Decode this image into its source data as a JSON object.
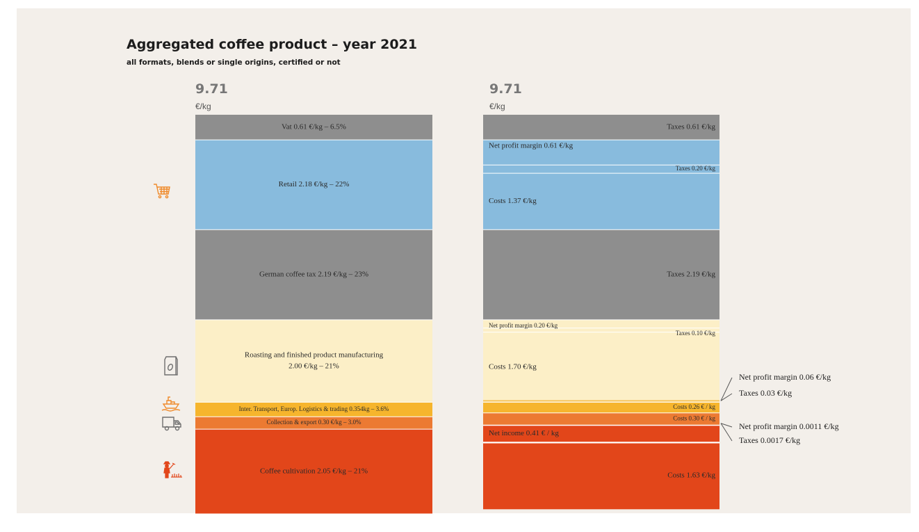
{
  "header": {
    "title": "Aggregated coffee product – year 2021",
    "subtitle": "all formats, blends or single origins, certified or not"
  },
  "left_bar": {
    "total": "9.71",
    "unit": "€/kg"
  },
  "right_bar": {
    "total": "9.71",
    "unit": "€/kg"
  },
  "icons": [
    "shopping-cart-icon",
    "coffee-bag-icon",
    "ship-icon",
    "truck-icon",
    "farmer-icon"
  ],
  "colors": {
    "tax": "#8e8e8e",
    "retail": "#88bbdd",
    "roasting": "#fcefc7",
    "transport": "#f6b52d",
    "export": "#ec7a32",
    "cultivation": "#e2461a",
    "icon": "#f08a2a",
    "background": "#f3efea"
  },
  "chart_data": [
    {
      "type": "bar",
      "stacked": true,
      "unit": "€/kg",
      "segments": [
        {
          "name": "Vat",
          "value": 0.61,
          "share": "6.5%",
          "label": "Vat 0.61 €/kg – 6.5%",
          "color_key": "tax"
        },
        {
          "name": "Retail",
          "value": 2.18,
          "share": "22%",
          "label": "Retail 2.18 €/kg – 22%",
          "color_key": "retail"
        },
        {
          "name": "German coffee tax",
          "value": 2.19,
          "share": "23%",
          "label": "German coffee tax 2.19 €/kg – 23%",
          "color_key": "tax"
        },
        {
          "name": "Roasting and finished product manufacturing",
          "value": 2.0,
          "share": "21%",
          "label": "Roasting and finished product manufacturing",
          "label2": "2.00 €/kg – 21%",
          "color_key": "roasting"
        },
        {
          "name": "Inter. Transport, Europ. Logistics & trading",
          "value": 0.354,
          "share": "3.6%",
          "label": "Inter. Transport, Europ. Logistics & trading 0.354kg – 3.6%",
          "color_key": "transport"
        },
        {
          "name": "Collection & export",
          "value": 0.3,
          "share": "3.0%",
          "label": "Collection & export 0.30 €/kg – 3.0%",
          "color_key": "export"
        },
        {
          "name": "Coffee cultivation",
          "value": 2.05,
          "share": "21%",
          "label": "Coffee cultivation 2.05 €/kg – 21%",
          "color_key": "cultivation"
        }
      ]
    },
    {
      "type": "bar",
      "stacked": true,
      "unit": "€/kg",
      "segments": [
        {
          "name": "Taxes",
          "value": 0.61,
          "label": "Taxes 0.61 €/kg",
          "color_key": "tax"
        },
        {
          "name": "Net profit margin",
          "value": 0.61,
          "label": "Net profit margin 0.61 €/kg",
          "color_key": "retail"
        },
        {
          "name": "Taxes",
          "value": 0.2,
          "label": "Taxes 0.20 €/kg",
          "color_key": "retail"
        },
        {
          "name": "Costs",
          "value": 1.37,
          "label": "Costs 1.37 €/kg",
          "color_key": "retail"
        },
        {
          "name": "Taxes",
          "value": 2.19,
          "label": "Taxes 2.19 €/kg",
          "color_key": "tax"
        },
        {
          "name": "Net profit margin",
          "value": 0.2,
          "label": "Net profit margin 0.20 €/kg",
          "color_key": "roasting"
        },
        {
          "name": "Taxes",
          "value": 0.1,
          "label": "Taxes 0.10 €/kg",
          "color_key": "roasting"
        },
        {
          "name": "Costs",
          "value": 1.7,
          "label": "Costs 1.70 €/kg",
          "color_key": "roasting"
        },
        {
          "name": "Costs",
          "value": 0.26,
          "label": "Costs 0.26 € / kg",
          "color_key": "transport"
        },
        {
          "name": "Costs",
          "value": 0.3,
          "label": "Costs 0.30 € / kg",
          "color_key": "export"
        },
        {
          "name": "Net income",
          "value": 0.41,
          "label": "Net income 0.41 € / kg",
          "color_key": "cultivation"
        },
        {
          "name": "Costs",
          "value": 1.63,
          "label": "Costs 1.63 €/kg",
          "color_key": "cultivation"
        }
      ],
      "callouts": [
        {
          "label": "Net profit margin 0.06 €/kg",
          "value": 0.06
        },
        {
          "label": "Taxes 0.03 €/kg",
          "value": 0.03
        },
        {
          "label": "Net profit margin 0.0011 €/kg",
          "value": 0.0011
        },
        {
          "label": "Taxes 0.0017 €/kg",
          "value": 0.0017
        }
      ]
    }
  ]
}
